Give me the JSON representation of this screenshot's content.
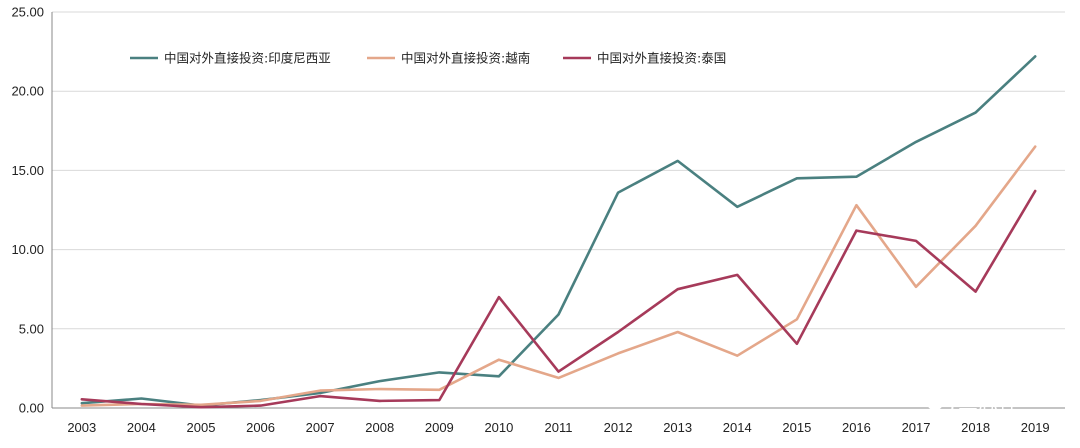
{
  "chart_data": {
    "type": "line",
    "title": "",
    "xlabel": "",
    "ylabel": "",
    "x": [
      "2003",
      "2004",
      "2005",
      "2006",
      "2007",
      "2008",
      "2009",
      "2010",
      "2011",
      "2012",
      "2013",
      "2014",
      "2015",
      "2016",
      "2017",
      "2018",
      "2019"
    ],
    "ylim": [
      0,
      25
    ],
    "y_ticks": [
      "0.00",
      "5.00",
      "10.00",
      "15.00",
      "20.00",
      "25.00"
    ],
    "grid": true,
    "legend_position": "top-left",
    "series": [
      {
        "name": "中国对外直接投资:印度尼西亚",
        "color": "#4a8080",
        "values": [
          0.3,
          0.6,
          0.15,
          0.5,
          0.95,
          1.7,
          2.25,
          2.0,
          5.9,
          13.6,
          15.6,
          12.7,
          14.5,
          14.6,
          16.8,
          18.65,
          22.2
        ]
      },
      {
        "name": "中国对外直接投资:越南",
        "color": "#e4a78a",
        "values": [
          0.15,
          0.25,
          0.2,
          0.45,
          1.1,
          1.2,
          1.15,
          3.05,
          1.9,
          3.45,
          4.8,
          3.3,
          5.6,
          12.8,
          7.65,
          11.5,
          16.5
        ]
      },
      {
        "name": "中国对外直接投资:泰国",
        "color": "#a63a5a",
        "values": [
          0.55,
          0.25,
          0.05,
          0.15,
          0.75,
          0.45,
          0.5,
          7.0,
          2.3,
          4.8,
          7.5,
          8.4,
          4.05,
          11.2,
          10.55,
          7.35,
          13.7
        ]
      }
    ]
  },
  "watermark": {
    "icon": "wechat-icon",
    "text": "三思社"
  }
}
